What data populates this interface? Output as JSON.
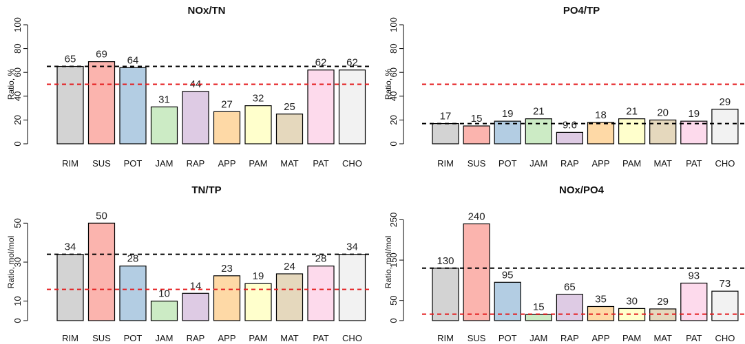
{
  "chart_data": [
    {
      "type": "bar",
      "title": "NOx/TN",
      "ylabel": "Ratio, %",
      "ylim": [
        0,
        100
      ],
      "yticks": [
        0,
        20,
        40,
        60,
        80,
        100
      ],
      "categories": [
        "RIM",
        "SUS",
        "POT",
        "JAM",
        "RAP",
        "APP",
        "PAM",
        "MAT",
        "PAT",
        "CHO"
      ],
      "values": [
        65,
        69,
        64,
        31,
        44,
        27,
        32,
        25,
        62,
        62
      ],
      "value_labels": [
        "65",
        "69",
        "64",
        "31",
        "44",
        "27",
        "32",
        "25",
        "62",
        "62"
      ],
      "colors": [
        "#d3d3d3",
        "#fbb4ae",
        "#b3cde3",
        "#ccebc5",
        "#decbe4",
        "#fed9a6",
        "#ffffcc",
        "#e5d8bd",
        "#fddaec",
        "#f2f2f2"
      ],
      "reference_lines": [
        {
          "value": 65,
          "color": "#000000",
          "style": "dashed"
        },
        {
          "value": 50,
          "color": "#e41a1c",
          "style": "dashed"
        }
      ]
    },
    {
      "type": "bar",
      "title": "PO4/TP",
      "ylabel": "Ratio, %",
      "ylim": [
        0,
        100
      ],
      "yticks": [
        0,
        20,
        40,
        60,
        80,
        100
      ],
      "categories": [
        "RIM",
        "SUS",
        "POT",
        "JAM",
        "RAP",
        "APP",
        "PAM",
        "MAT",
        "PAT",
        "CHO"
      ],
      "values": [
        17,
        15,
        19,
        21,
        9.6,
        18,
        21,
        20,
        19,
        29
      ],
      "value_labels": [
        "17",
        "15",
        "19",
        "21",
        "9.6",
        "18",
        "21",
        "20",
        "19",
        "29"
      ],
      "colors": [
        "#d3d3d3",
        "#fbb4ae",
        "#b3cde3",
        "#ccebc5",
        "#decbe4",
        "#fed9a6",
        "#ffffcc",
        "#e5d8bd",
        "#fddaec",
        "#f2f2f2"
      ],
      "reference_lines": [
        {
          "value": 50,
          "color": "#e41a1c",
          "style": "dashed"
        },
        {
          "value": 17,
          "color": "#000000",
          "style": "dashed"
        }
      ]
    },
    {
      "type": "bar",
      "title": "TN/TP",
      "ylabel": "Ratio, mol/mol",
      "ylim": [
        0,
        60
      ],
      "yticks": [
        0,
        10,
        30,
        50
      ],
      "categories": [
        "RIM",
        "SUS",
        "POT",
        "JAM",
        "RAP",
        "APP",
        "PAM",
        "MAT",
        "PAT",
        "CHO"
      ],
      "values": [
        34,
        50,
        28,
        10,
        14,
        23,
        19,
        24,
        28,
        34
      ],
      "value_labels": [
        "34",
        "50",
        "28",
        "10",
        "14",
        "23",
        "19",
        "24",
        "28",
        "34"
      ],
      "colors": [
        "#d3d3d3",
        "#fbb4ae",
        "#b3cde3",
        "#ccebc5",
        "#decbe4",
        "#fed9a6",
        "#ffffcc",
        "#e5d8bd",
        "#fddaec",
        "#f2f2f2"
      ],
      "reference_lines": [
        {
          "value": 34,
          "color": "#000000",
          "style": "dashed"
        },
        {
          "value": 16,
          "color": "#e41a1c",
          "style": "dashed"
        }
      ]
    },
    {
      "type": "bar",
      "title": "NOx/PO4",
      "ylabel": "Ratio, mol/mol",
      "ylim": [
        0,
        290
      ],
      "yticks": [
        0,
        50,
        150,
        250
      ],
      "categories": [
        "RIM",
        "SUS",
        "POT",
        "JAM",
        "RAP",
        "APP",
        "PAM",
        "MAT",
        "PAT",
        "CHO"
      ],
      "values": [
        130,
        240,
        95,
        15,
        65,
        35,
        30,
        29,
        93,
        73
      ],
      "value_labels": [
        "130",
        "240",
        "95",
        "15",
        "65",
        "35",
        "30",
        "29",
        "93",
        "73"
      ],
      "colors": [
        "#d3d3d3",
        "#fbb4ae",
        "#b3cde3",
        "#ccebc5",
        "#decbe4",
        "#fed9a6",
        "#ffffcc",
        "#e5d8bd",
        "#fddaec",
        "#f2f2f2"
      ],
      "reference_lines": [
        {
          "value": 130,
          "color": "#000000",
          "style": "dashed"
        },
        {
          "value": 16,
          "color": "#e41a1c",
          "style": "dashed"
        }
      ]
    }
  ]
}
